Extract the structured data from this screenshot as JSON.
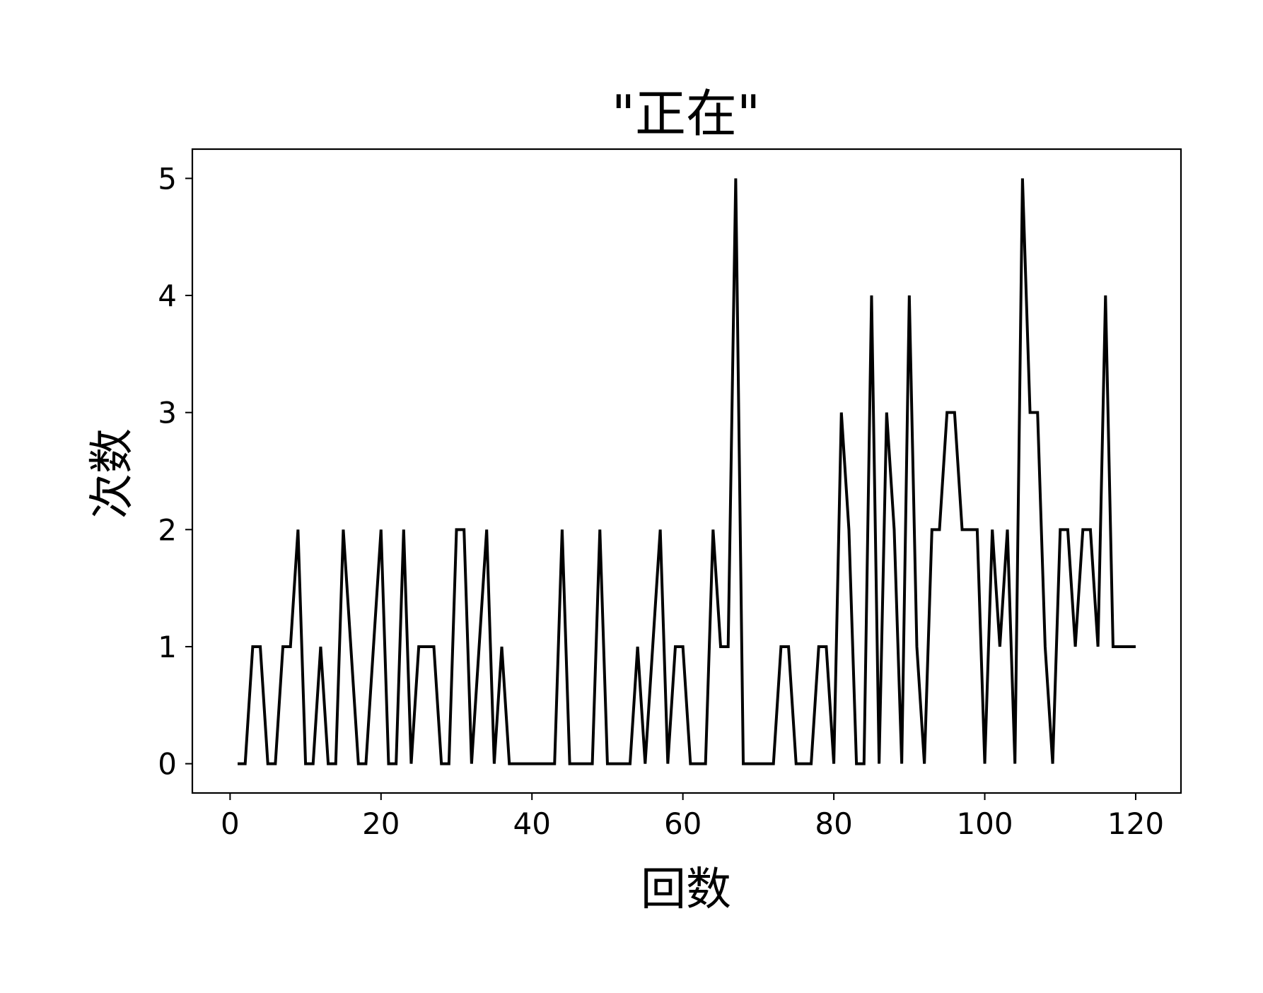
{
  "chart_data": {
    "type": "line",
    "title": "\"正在\"",
    "xlabel": "回数",
    "ylabel": "次数",
    "xlim": [
      -5,
      126
    ],
    "ylim": [
      -0.25,
      5.25
    ],
    "xticks": [
      0,
      20,
      40,
      60,
      80,
      100,
      120
    ],
    "yticks": [
      0,
      1,
      2,
      3,
      4,
      5
    ],
    "grid": false,
    "line_color": "#000000",
    "series": [
      {
        "x": [
          1,
          2,
          3,
          4,
          5,
          6,
          7,
          8,
          9,
          10,
          11,
          12,
          13,
          14,
          15,
          16,
          17,
          18,
          19,
          20,
          21,
          22,
          23,
          24,
          25,
          26,
          27,
          28,
          29,
          30,
          31,
          32,
          33,
          34,
          35,
          36,
          37,
          38,
          39,
          40,
          41,
          42,
          43,
          44,
          45,
          46,
          47,
          48,
          49,
          50,
          51,
          52,
          53,
          54,
          55,
          56,
          57,
          58,
          59,
          60,
          61,
          62,
          63,
          64,
          65,
          66,
          67,
          68,
          69,
          70,
          71,
          72,
          73,
          74,
          75,
          76,
          77,
          78,
          79,
          80,
          81,
          82,
          83,
          84,
          85,
          86,
          87,
          88,
          89,
          90,
          91,
          92,
          93,
          94,
          95,
          96,
          97,
          98,
          99,
          100,
          101,
          102,
          103,
          104,
          105,
          106,
          107,
          108,
          109,
          110,
          111,
          112,
          113,
          114,
          115,
          116,
          117,
          118,
          119,
          120
        ],
        "values": [
          0,
          0,
          1,
          1,
          0,
          0,
          1,
          1,
          2,
          0,
          0,
          1,
          0,
          0,
          2,
          1,
          0,
          0,
          1,
          2,
          0,
          0,
          2,
          0,
          1,
          1,
          1,
          0,
          0,
          2,
          2,
          0,
          1,
          2,
          0,
          1,
          0,
          0,
          0,
          0,
          0,
          0,
          0,
          2,
          0,
          0,
          0,
          0,
          2,
          0,
          0,
          0,
          0,
          1,
          0,
          1,
          2,
          0,
          1,
          1,
          0,
          0,
          0,
          2,
          1,
          1,
          5,
          0,
          0,
          0,
          0,
          0,
          1,
          1,
          0,
          0,
          0,
          1,
          1,
          0,
          3,
          2,
          0,
          0,
          4,
          0,
          3,
          2,
          0,
          4,
          1,
          0,
          2,
          2,
          3,
          3,
          2,
          2,
          2,
          0,
          2,
          1,
          2,
          0,
          5,
          3,
          3,
          1,
          0,
          2,
          2,
          1,
          2,
          2,
          1,
          4,
          1,
          1,
          1,
          1
        ]
      }
    ]
  }
}
